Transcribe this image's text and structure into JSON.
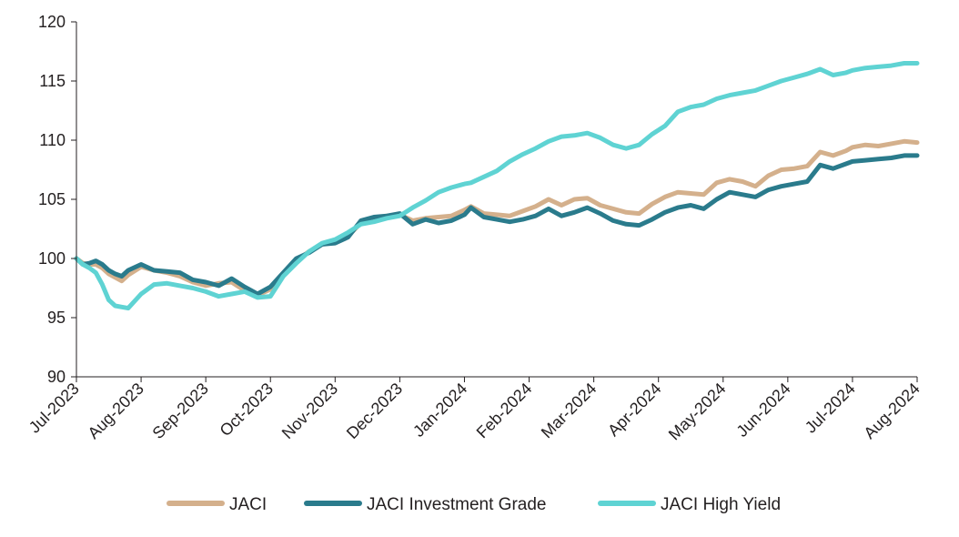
{
  "chart_data": {
    "type": "line",
    "title": "",
    "xlabel": "",
    "ylabel": "",
    "ylim": [
      90,
      120
    ],
    "yticks": [
      90,
      95,
      100,
      105,
      110,
      115,
      120
    ],
    "x_labels": [
      "Jul-2023",
      "Aug-2023",
      "Sep-2023",
      "Oct-2023",
      "Nov-2023",
      "Dec-2023",
      "Jan-2024",
      "Feb-2024",
      "Mar-2024",
      "Apr-2024",
      "May-2024",
      "Jun-2024",
      "Jul-2024",
      "Aug-2024"
    ],
    "grid": false,
    "legend_position": "bottom",
    "series": [
      {
        "name": "JACI",
        "color": "#d4b08c",
        "x": [
          0,
          0.1,
          0.2,
          0.3,
          0.4,
          0.5,
          0.6,
          0.7,
          0.8,
          1.0,
          1.2,
          1.4,
          1.6,
          1.8,
          2.0,
          2.2,
          2.4,
          2.6,
          2.8,
          3.0,
          3.2,
          3.4,
          3.6,
          3.8,
          4.0,
          4.2,
          4.4,
          4.6,
          4.8,
          5.0,
          5.2,
          5.4,
          5.6,
          5.8,
          6.0,
          6.1,
          6.3,
          6.5,
          6.7,
          6.9,
          7.1,
          7.3,
          7.5,
          7.7,
          7.9,
          8.1,
          8.3,
          8.5,
          8.7,
          8.9,
          9.1,
          9.3,
          9.5,
          9.7,
          9.9,
          10.1,
          10.3,
          10.5,
          10.7,
          10.9,
          11.1,
          11.3,
          11.5,
          11.7,
          11.9,
          12.0,
          12.2,
          12.4,
          12.6,
          12.8,
          13.0
        ],
        "values": [
          100.0,
          99.6,
          99.5,
          99.5,
          99.2,
          98.7,
          98.4,
          98.1,
          98.6,
          99.3,
          99.0,
          98.8,
          98.5,
          98.0,
          97.7,
          97.9,
          98.0,
          97.3,
          96.9,
          97.4,
          98.6,
          99.8,
          100.6,
          101.2,
          101.4,
          101.9,
          103.0,
          103.3,
          103.6,
          103.7,
          103.2,
          103.4,
          103.5,
          103.6,
          104.1,
          104.4,
          103.8,
          103.7,
          103.6,
          104.0,
          104.4,
          105.0,
          104.5,
          105.0,
          105.1,
          104.5,
          104.2,
          103.9,
          103.8,
          104.6,
          105.2,
          105.6,
          105.5,
          105.4,
          106.4,
          106.7,
          106.5,
          106.1,
          107.0,
          107.5,
          107.6,
          107.8,
          109.0,
          108.7,
          109.1,
          109.4,
          109.6,
          109.5,
          109.7,
          109.9,
          109.8
        ]
      },
      {
        "name": "JACI Investment Grade",
        "color": "#2a7b8c",
        "x": [
          0,
          0.1,
          0.2,
          0.3,
          0.4,
          0.5,
          0.6,
          0.7,
          0.8,
          1.0,
          1.2,
          1.4,
          1.6,
          1.8,
          2.0,
          2.2,
          2.4,
          2.6,
          2.8,
          3.0,
          3.2,
          3.4,
          3.6,
          3.8,
          4.0,
          4.2,
          4.4,
          4.6,
          4.8,
          5.0,
          5.2,
          5.4,
          5.6,
          5.8,
          6.0,
          6.1,
          6.3,
          6.5,
          6.7,
          6.9,
          7.1,
          7.3,
          7.5,
          7.7,
          7.9,
          8.1,
          8.3,
          8.5,
          8.7,
          8.9,
          9.1,
          9.3,
          9.5,
          9.7,
          9.9,
          10.1,
          10.3,
          10.5,
          10.7,
          10.9,
          11.1,
          11.3,
          11.5,
          11.7,
          11.9,
          12.0,
          12.2,
          12.4,
          12.6,
          12.8,
          13.0
        ],
        "values": [
          100.0,
          99.5,
          99.6,
          99.8,
          99.5,
          99.0,
          98.7,
          98.5,
          99.0,
          99.5,
          99.0,
          98.9,
          98.8,
          98.2,
          98.0,
          97.7,
          98.3,
          97.6,
          97.0,
          97.6,
          98.8,
          100.0,
          100.5,
          101.2,
          101.3,
          101.8,
          103.2,
          103.5,
          103.6,
          103.8,
          102.9,
          103.3,
          103.0,
          103.2,
          103.7,
          104.3,
          103.5,
          103.3,
          103.1,
          103.3,
          103.6,
          104.2,
          103.6,
          103.9,
          104.3,
          103.8,
          103.2,
          102.9,
          102.8,
          103.3,
          103.9,
          104.3,
          104.5,
          104.2,
          105.0,
          105.6,
          105.4,
          105.2,
          105.8,
          106.1,
          106.3,
          106.5,
          107.9,
          107.6,
          108.0,
          108.2,
          108.3,
          108.4,
          108.5,
          108.7,
          108.7
        ]
      },
      {
        "name": "JACI High Yield",
        "color": "#5fd3d3",
        "x": [
          0,
          0.1,
          0.2,
          0.3,
          0.4,
          0.5,
          0.6,
          0.7,
          0.8,
          1.0,
          1.2,
          1.4,
          1.6,
          1.8,
          2.0,
          2.2,
          2.4,
          2.6,
          2.8,
          3.0,
          3.2,
          3.4,
          3.6,
          3.8,
          4.0,
          4.2,
          4.4,
          4.6,
          4.8,
          5.0,
          5.2,
          5.4,
          5.6,
          5.8,
          6.0,
          6.1,
          6.3,
          6.5,
          6.7,
          6.9,
          7.1,
          7.3,
          7.5,
          7.7,
          7.9,
          8.1,
          8.3,
          8.5,
          8.7,
          8.9,
          9.1,
          9.3,
          9.5,
          9.7,
          9.9,
          10.1,
          10.3,
          10.5,
          10.7,
          10.9,
          11.1,
          11.3,
          11.5,
          11.7,
          11.9,
          12.0,
          12.2,
          12.4,
          12.6,
          12.8,
          13.0
        ],
        "values": [
          100.0,
          99.5,
          99.2,
          98.8,
          97.8,
          96.5,
          96.0,
          95.9,
          95.8,
          97.0,
          97.8,
          97.9,
          97.7,
          97.5,
          97.2,
          96.8,
          97.0,
          97.2,
          96.7,
          96.8,
          98.5,
          99.6,
          100.6,
          101.3,
          101.6,
          102.2,
          102.9,
          103.1,
          103.4,
          103.6,
          104.3,
          104.9,
          105.6,
          106.0,
          106.3,
          106.4,
          106.9,
          107.4,
          108.2,
          108.8,
          109.3,
          109.9,
          110.3,
          110.4,
          110.6,
          110.2,
          109.6,
          109.3,
          109.6,
          110.5,
          111.2,
          112.4,
          112.8,
          113.0,
          113.5,
          113.8,
          114.0,
          114.2,
          114.6,
          115.0,
          115.3,
          115.6,
          116.0,
          115.5,
          115.7,
          115.9,
          116.1,
          116.2,
          116.3,
          116.5,
          116.5
        ]
      }
    ]
  }
}
